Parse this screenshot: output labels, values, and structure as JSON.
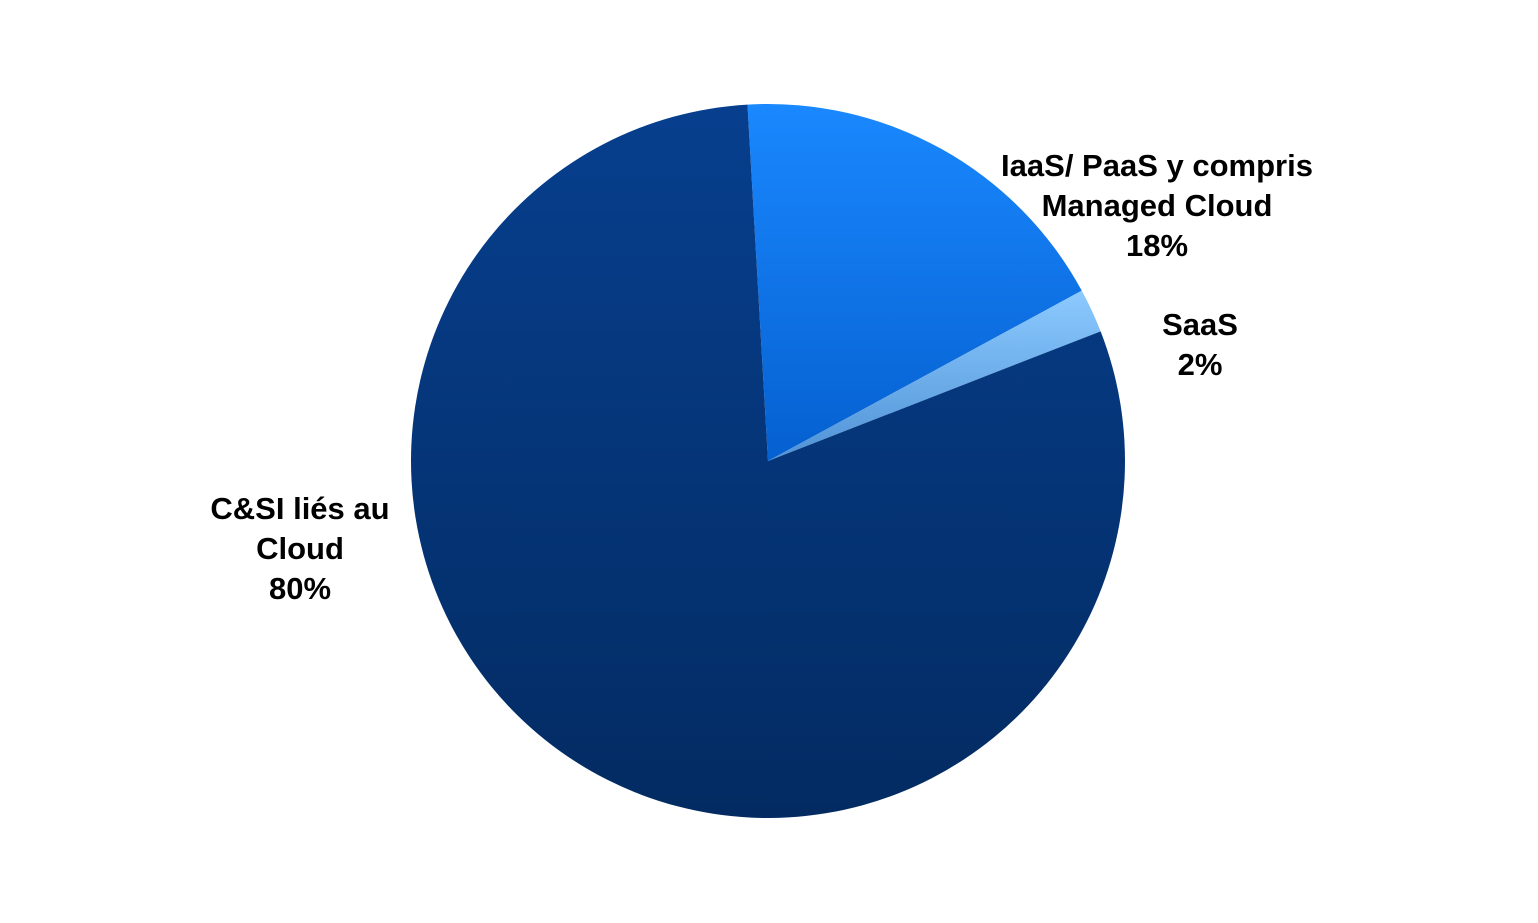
{
  "chart_data": {
    "type": "pie",
    "start_angle_deg": -3.3,
    "direction": "clockwise",
    "slices": [
      {
        "name": "IaaS/ PaaS y compris Managed Cloud",
        "label_lines": [
          "IaaS/ PaaS y compris",
          "Managed Cloud"
        ],
        "percent_label": "18%",
        "value": 18,
        "color": "#0a78f0",
        "color_light": "#1a88ff",
        "color_dark": "#0560d0"
      },
      {
        "name": "SaaS",
        "label_lines": [
          "SaaS"
        ],
        "percent_label": "2%",
        "value": 2,
        "color": "#6fb0ef",
        "color_light": "#8ccaff",
        "color_dark": "#4f92d6"
      },
      {
        "name": "C&SI liés au Cloud",
        "label_lines": [
          "C&SI liés au",
          "Cloud"
        ],
        "percent_label": "80%",
        "value": 80,
        "color": "#053a80",
        "color_light": "#073f8e",
        "color_dark": "#032b62"
      }
    ]
  }
}
